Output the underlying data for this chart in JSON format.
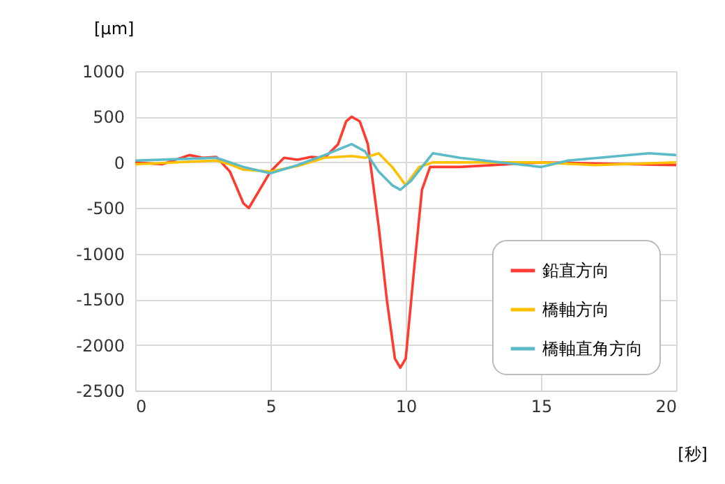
{
  "chart_data": {
    "type": "line",
    "ylabel": "[μm]",
    "xlabel": "[秒]",
    "xlim": [
      0,
      20
    ],
    "xticks": [
      0,
      5,
      10,
      15,
      20
    ],
    "ylim": [
      -2500,
      1000
    ],
    "yticks": [
      -2500,
      -2000,
      -1500,
      -1000,
      -500,
      0,
      500,
      1000
    ],
    "grid": true,
    "legend": "bottom right",
    "line_style": "solid",
    "marker": "none",
    "series": [
      {
        "name": "鉛直方向",
        "color": "#ff3b30",
        "x": [
          0,
          1,
          2,
          2.5,
          3,
          3.5,
          4,
          4.2,
          4.5,
          5,
          5.5,
          6,
          6.5,
          7,
          7.5,
          7.8,
          8,
          8.3,
          8.6,
          9,
          9.3,
          9.6,
          9.8,
          10,
          10.3,
          10.6,
          10.9,
          12,
          15,
          20
        ],
        "values": [
          0,
          -20,
          80,
          50,
          60,
          -100,
          -450,
          -500,
          -350,
          -100,
          50,
          30,
          60,
          50,
          200,
          450,
          500,
          450,
          200,
          -700,
          -1500,
          -2150,
          -2250,
          -2150,
          -1200,
          -300,
          -50,
          -50,
          0,
          -30
        ]
      },
      {
        "name": "橋軸方向",
        "color": "#ffc000",
        "x": [
          0,
          3,
          3.5,
          4,
          5,
          6,
          7,
          8,
          8.5,
          9,
          9.5,
          10,
          10.5,
          11,
          15,
          17,
          20
        ],
        "values": [
          -20,
          20,
          -20,
          -80,
          -100,
          -40,
          50,
          70,
          50,
          100,
          -50,
          -250,
          -50,
          0,
          0,
          -30,
          0
        ]
      },
      {
        "name": "橋軸直角方向",
        "color": "#5bbcc8",
        "x": [
          0,
          2,
          3,
          4,
          5,
          6,
          7,
          8,
          8.5,
          9,
          9.5,
          9.8,
          10.2,
          11,
          12,
          15,
          16,
          19,
          20
        ],
        "values": [
          20,
          40,
          50,
          -50,
          -120,
          -30,
          80,
          200,
          120,
          -100,
          -250,
          -300,
          -200,
          100,
          50,
          -50,
          20,
          100,
          80
        ]
      }
    ]
  }
}
